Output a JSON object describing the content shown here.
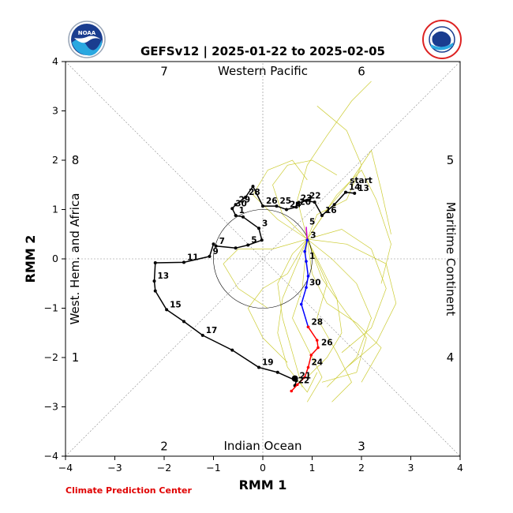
{
  "chart_data": {
    "type": "line",
    "title": "GEFSv12 | 2025-01-22 to 2025-02-05",
    "xlabel": "RMM 1",
    "ylabel": "RMM 2",
    "xlim": [
      -4,
      4
    ],
    "ylim": [
      -4,
      4
    ],
    "xticks": [
      "−4",
      "−3",
      "−2",
      "−1",
      "0",
      "1",
      "2",
      "3",
      "4"
    ],
    "yticks": [
      "−4",
      "−3",
      "−2",
      "−1",
      "0",
      "1",
      "2",
      "3",
      "4"
    ],
    "regions": {
      "top": "Western Pacific",
      "bottom": "Indian Ocean",
      "left": "West. Hem. and Africa",
      "right": "Maritime Continent"
    },
    "phases": [
      {
        "label": "1",
        "x": -3.8,
        "y": -2.0
      },
      {
        "label": "2",
        "x": -2.0,
        "y": -3.8
      },
      {
        "label": "3",
        "x": 2.0,
        "y": -3.8
      },
      {
        "label": "4",
        "x": 3.8,
        "y": -2.0
      },
      {
        "label": "5",
        "x": 3.8,
        "y": 2.0
      },
      {
        "label": "6",
        "x": 2.0,
        "y": 3.8
      },
      {
        "label": "7",
        "x": -2.0,
        "y": 3.8
      },
      {
        "label": "8",
        "x": -3.8,
        "y": 2.0
      }
    ],
    "start_label": "start",
    "colors": {
      "observed": "#000000",
      "forecast_week1": "#0000ff",
      "forecast_week2": "#ff0000",
      "forecast_start": "#cc00cc",
      "ensemble": "#cccc33",
      "grid": "#888888"
    },
    "observed": [
      {
        "x": 1.86,
        "y": 1.33,
        "label": "13"
      },
      {
        "x": 1.68,
        "y": 1.35,
        "label": "14"
      },
      {
        "x": 1.45,
        "y": 1.1,
        "label": ""
      },
      {
        "x": 1.2,
        "y": 0.88,
        "label": "16"
      },
      {
        "x": 1.05,
        "y": 1.15,
        "label": ""
      },
      {
        "x": 0.88,
        "y": 1.18,
        "label": "22"
      },
      {
        "x": 0.7,
        "y": 1.13,
        "label": "23"
      },
      {
        "x": 0.68,
        "y": 1.05,
        "label": "20"
      },
      {
        "x": 0.48,
        "y": 1.0,
        "label": "24"
      },
      {
        "x": 0.28,
        "y": 1.07,
        "label": "25"
      },
      {
        "x": 0.0,
        "y": 1.07,
        "label": "26"
      },
      {
        "x": -0.2,
        "y": 1.47,
        "label": ""
      },
      {
        "x": -0.35,
        "y": 1.25,
        "label": "28"
      },
      {
        "x": -0.55,
        "y": 1.1,
        "label": "29"
      },
      {
        "x": -0.62,
        "y": 1.02,
        "label": "30"
      },
      {
        "x": -0.55,
        "y": 0.88,
        "label": "1"
      },
      {
        "x": -0.4,
        "y": 0.85,
        "label": ""
      },
      {
        "x": -0.08,
        "y": 0.62,
        "label": "3"
      },
      {
        "x": -0.02,
        "y": 0.38,
        "label": ""
      },
      {
        "x": -0.3,
        "y": 0.28,
        "label": "5"
      },
      {
        "x": -0.55,
        "y": 0.22,
        "label": ""
      },
      {
        "x": -0.95,
        "y": 0.26,
        "label": "7"
      },
      {
        "x": -1.0,
        "y": 0.3,
        "label": ""
      },
      {
        "x": -1.08,
        "y": 0.05,
        "label": "9"
      },
      {
        "x": -1.6,
        "y": -0.07,
        "label": "11"
      },
      {
        "x": -2.18,
        "y": -0.08,
        "label": ""
      },
      {
        "x": -2.2,
        "y": -0.45,
        "label": "13"
      },
      {
        "x": -2.18,
        "y": -0.65,
        "label": ""
      },
      {
        "x": -1.95,
        "y": -1.03,
        "label": "15"
      },
      {
        "x": -1.6,
        "y": -1.27,
        "label": ""
      },
      {
        "x": -1.22,
        "y": -1.55,
        "label": "17"
      },
      {
        "x": -0.62,
        "y": -1.85,
        "label": ""
      },
      {
        "x": -0.08,
        "y": -2.2,
        "label": "19"
      },
      {
        "x": 0.3,
        "y": -2.3,
        "label": ""
      },
      {
        "x": 0.68,
        "y": -2.47,
        "label": "21"
      },
      {
        "x": 0.65,
        "y": -2.57,
        "label": "22"
      }
    ],
    "forecast_start": [
      {
        "x": 0.88,
        "y": 0.65,
        "label": "5"
      },
      {
        "x": 0.9,
        "y": 0.38,
        "label": "3"
      }
    ],
    "forecast_week1": [
      {
        "x": 0.9,
        "y": 0.38,
        "label": ""
      },
      {
        "x": 0.85,
        "y": 0.15,
        "label": ""
      },
      {
        "x": 0.88,
        "y": -0.05,
        "label": "1"
      },
      {
        "x": 0.92,
        "y": -0.35,
        "label": ""
      },
      {
        "x": 0.88,
        "y": -0.58,
        "label": "30"
      },
      {
        "x": 0.78,
        "y": -0.92,
        "label": ""
      },
      {
        "x": 0.92,
        "y": -1.38,
        "label": "28"
      }
    ],
    "forecast_week2": [
      {
        "x": 0.92,
        "y": -1.38,
        "label": ""
      },
      {
        "x": 1.1,
        "y": -1.65,
        "label": ""
      },
      {
        "x": 1.12,
        "y": -1.8,
        "label": "26"
      },
      {
        "x": 0.98,
        "y": -1.95,
        "label": ""
      },
      {
        "x": 0.92,
        "y": -2.2,
        "label": "24"
      },
      {
        "x": 0.85,
        "y": -2.4,
        "label": ""
      },
      {
        "x": 0.7,
        "y": -2.55,
        "label": ""
      },
      {
        "x": 0.58,
        "y": -2.68,
        "label": ""
      }
    ],
    "ensemble": [
      [
        [
          0.9,
          0.4
        ],
        [
          1.2,
          -0.2
        ],
        [
          1.5,
          -0.8
        ],
        [
          1.6,
          -1.5
        ],
        [
          1.3,
          -2.0
        ],
        [
          0.9,
          -2.4
        ]
      ],
      [
        [
          0.9,
          0.4
        ],
        [
          0.6,
          0.1
        ],
        [
          0.3,
          -0.5
        ],
        [
          0.4,
          -1.2
        ],
        [
          0.6,
          -1.9
        ],
        [
          0.8,
          -2.6
        ]
      ],
      [
        [
          0.9,
          0.4
        ],
        [
          1.6,
          0.6
        ],
        [
          2.2,
          0.2
        ],
        [
          2.5,
          -0.6
        ],
        [
          2.2,
          -1.4
        ],
        [
          1.6,
          -1.9
        ]
      ],
      [
        [
          0.9,
          0.4
        ],
        [
          1.3,
          1.0
        ],
        [
          1.8,
          1.6
        ],
        [
          2.2,
          2.2
        ],
        [
          2.4,
          1.4
        ],
        [
          2.6,
          0.5
        ]
      ],
      [
        [
          0.9,
          0.4
        ],
        [
          0.4,
          0.9
        ],
        [
          0.2,
          1.5
        ],
        [
          0.5,
          1.9
        ],
        [
          1.0,
          2.0
        ],
        [
          1.5,
          1.7
        ]
      ],
      [
        [
          0.9,
          0.4
        ],
        [
          1.0,
          -0.3
        ],
        [
          1.3,
          -0.9
        ],
        [
          1.9,
          -1.3
        ],
        [
          2.4,
          -1.8
        ],
        [
          2.0,
          -2.5
        ]
      ],
      [
        [
          0.9,
          0.4
        ],
        [
          0.5,
          -0.3
        ],
        [
          0.0,
          -0.6
        ],
        [
          -0.3,
          -1.0
        ],
        [
          0.0,
          -1.6
        ],
        [
          0.5,
          -2.1
        ]
      ],
      [
        [
          0.9,
          0.4
        ],
        [
          1.4,
          0.0
        ],
        [
          1.9,
          -0.5
        ],
        [
          2.2,
          -1.2
        ],
        [
          1.9,
          -2.0
        ],
        [
          1.3,
          -2.6
        ]
      ],
      [
        [
          0.9,
          0.4
        ],
        [
          1.1,
          0.9
        ],
        [
          1.7,
          1.2
        ],
        [
          2.0,
          1.9
        ],
        [
          1.7,
          2.6
        ],
        [
          1.1,
          3.1
        ]
      ],
      [
        [
          0.9,
          0.4
        ],
        [
          0.7,
          1.2
        ],
        [
          0.9,
          1.9
        ],
        [
          1.3,
          2.5
        ],
        [
          1.8,
          3.2
        ],
        [
          2.2,
          3.6
        ]
      ],
      [
        [
          0.9,
          0.4
        ],
        [
          1.3,
          -0.5
        ],
        [
          1.1,
          -1.2
        ],
        [
          1.5,
          -1.9
        ],
        [
          1.8,
          -2.5
        ],
        [
          1.4,
          -2.9
        ]
      ],
      [
        [
          0.9,
          0.4
        ],
        [
          0.2,
          0.2
        ],
        [
          -0.5,
          0.2
        ],
        [
          -0.8,
          -0.1
        ],
        [
          -0.5,
          -0.6
        ],
        [
          0.1,
          -1.0
        ]
      ],
      [
        [
          0.9,
          0.4
        ],
        [
          1.7,
          0.3
        ],
        [
          2.5,
          -0.1
        ],
        [
          2.7,
          -0.9
        ],
        [
          2.3,
          -1.7
        ],
        [
          1.7,
          -2.2
        ]
      ],
      [
        [
          0.9,
          0.4
        ],
        [
          0.8,
          -0.6
        ],
        [
          0.6,
          -1.2
        ],
        [
          0.9,
          -1.8
        ],
        [
          1.2,
          -2.4
        ],
        [
          0.9,
          -2.9
        ]
      ],
      [
        [
          0.9,
          0.4
        ],
        [
          1.5,
          1.3
        ],
        [
          2.0,
          1.8
        ],
        [
          2.3,
          1.2
        ],
        [
          2.6,
          0.3
        ],
        [
          2.4,
          -0.5
        ]
      ],
      [
        [
          0.9,
          0.4
        ],
        [
          0.3,
          0.8
        ],
        [
          -0.2,
          1.3
        ],
        [
          0.1,
          1.8
        ],
        [
          0.6,
          2.0
        ],
        [
          0.9,
          1.6
        ]
      ],
      [
        [
          0.9,
          0.4
        ],
        [
          1.2,
          -0.4
        ],
        [
          1.7,
          -1.1
        ],
        [
          2.1,
          -1.6
        ],
        [
          1.9,
          -2.3
        ],
        [
          1.2,
          -2.5
        ]
      ],
      [
        [
          0.9,
          0.4
        ],
        [
          0.4,
          -0.8
        ],
        [
          0.3,
          -1.5
        ],
        [
          0.5,
          -2.2
        ],
        [
          0.9,
          -2.7
        ],
        [
          1.1,
          -2.3
        ]
      ]
    ],
    "credit": "Climate Prediction Center",
    "logos": {
      "left": {
        "icon": "noaa-logo-icon",
        "text": "NOAA"
      },
      "right": {
        "icon": "national-weather-service-logo-icon",
        "text": "NATIONAL WEATHER SERVICE"
      }
    }
  }
}
